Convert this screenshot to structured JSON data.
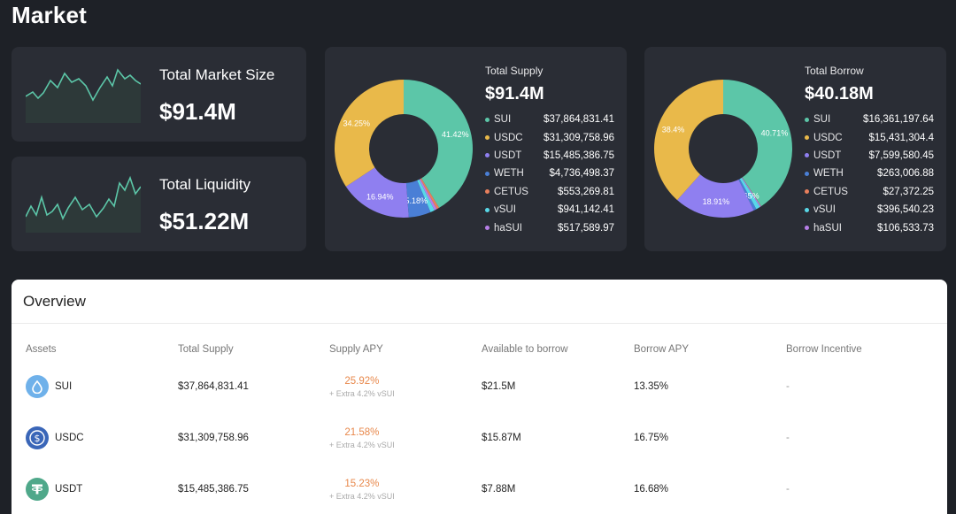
{
  "page": {
    "title": "Market"
  },
  "stats": [
    {
      "label": "Total Market Size",
      "value": "$91.4M"
    },
    {
      "label": "Total Liquidity",
      "value": "$51.22M"
    }
  ],
  "colors": {
    "SUI": "#5cc6a8",
    "USDC": "#e9b94a",
    "USDT": "#8f7ff0",
    "WETH": "#4a7fd6",
    "CETUS": "#e87f5c",
    "vSUI": "#58d8e8",
    "haSUI": "#b77fe8",
    "accent": "#e8884b"
  },
  "supply": {
    "title": "Total Supply",
    "value": "$91.4M",
    "slices": [
      {
        "name": "SUI",
        "amount": "$37,864,831.41",
        "percent": 41.42,
        "label": "41.42%",
        "color": "#5cc6a8"
      },
      {
        "name": "USDC",
        "amount": "$31,309,758.96",
        "percent": 34.25,
        "label": "34.25%",
        "color": "#e9b94a"
      },
      {
        "name": "USDT",
        "amount": "$15,485,386.75",
        "percent": 16.94,
        "label": "16.94%",
        "color": "#8f7ff0"
      },
      {
        "name": "WETH",
        "amount": "$4,736,498.37",
        "percent": 5.18,
        "label": "5.18%",
        "color": "#4a7fd6"
      },
      {
        "name": "CETUS",
        "amount": "$553,269.81",
        "percent": 0.61,
        "label": "",
        "color": "#e87f5c"
      },
      {
        "name": "vSUI",
        "amount": "$941,142.41",
        "percent": 1.03,
        "label": "",
        "color": "#58d8e8"
      },
      {
        "name": "haSUI",
        "amount": "$517,589.97",
        "percent": 0.57,
        "label": "",
        "color": "#b77fe8"
      }
    ]
  },
  "borrow": {
    "title": "Total Borrow",
    "value": "$40.18M",
    "slices": [
      {
        "name": "SUI",
        "amount": "$16,361,197.64",
        "percent": 40.71,
        "label": "40.71%",
        "color": "#5cc6a8"
      },
      {
        "name": "USDC",
        "amount": "$15,431,304.4",
        "percent": 38.4,
        "label": "38.4%",
        "color": "#e9b94a"
      },
      {
        "name": "USDT",
        "amount": "$7,599,580.45",
        "percent": 18.91,
        "label": "18.91%",
        "color": "#8f7ff0"
      },
      {
        "name": "WETH",
        "amount": "$263,006.88",
        "percent": 0.65,
        "label": "0.65%",
        "color": "#4a7fd6"
      },
      {
        "name": "CETUS",
        "amount": "$27,372.25",
        "percent": 0.07,
        "label": "",
        "color": "#e87f5c"
      },
      {
        "name": "vSUI",
        "amount": "$396,540.23",
        "percent": 0.99,
        "label": "",
        "color": "#58d8e8"
      },
      {
        "name": "haSUI",
        "amount": "$106,533.73",
        "percent": 0.27,
        "label": "",
        "color": "#b77fe8"
      }
    ]
  },
  "overview": {
    "title": "Overview",
    "columns": [
      "Assets",
      "Total Supply",
      "Supply APY",
      "Available to borrow",
      "Borrow APY",
      "Borrow Incentive"
    ],
    "rows": [
      {
        "asset": "SUI",
        "icon": "sui-droplet-icon",
        "icon_color": "#6fb1ea",
        "total_supply": "$37,864,831.41",
        "supply_apy": "25.92%",
        "supply_extra": "+ Extra 4.2% vSUI",
        "available": "$21.5M",
        "borrow_apy": "13.35%",
        "incentive": "-"
      },
      {
        "asset": "USDC",
        "icon": "usdc-coin-icon",
        "icon_color": "#3a66b8",
        "total_supply": "$31,309,758.96",
        "supply_apy": "21.58%",
        "supply_extra": "+ Extra 4.2% vSUI",
        "available": "$15.87M",
        "borrow_apy": "16.75%",
        "incentive": "-"
      },
      {
        "asset": "USDT",
        "icon": "usdt-tether-icon",
        "icon_color": "#4fa88a",
        "total_supply": "$15,485,386.75",
        "supply_apy": "15.23%",
        "supply_extra": "+ Extra 4.2% vSUI",
        "available": "$7.88M",
        "borrow_apy": "16.68%",
        "incentive": "-"
      }
    ]
  }
}
